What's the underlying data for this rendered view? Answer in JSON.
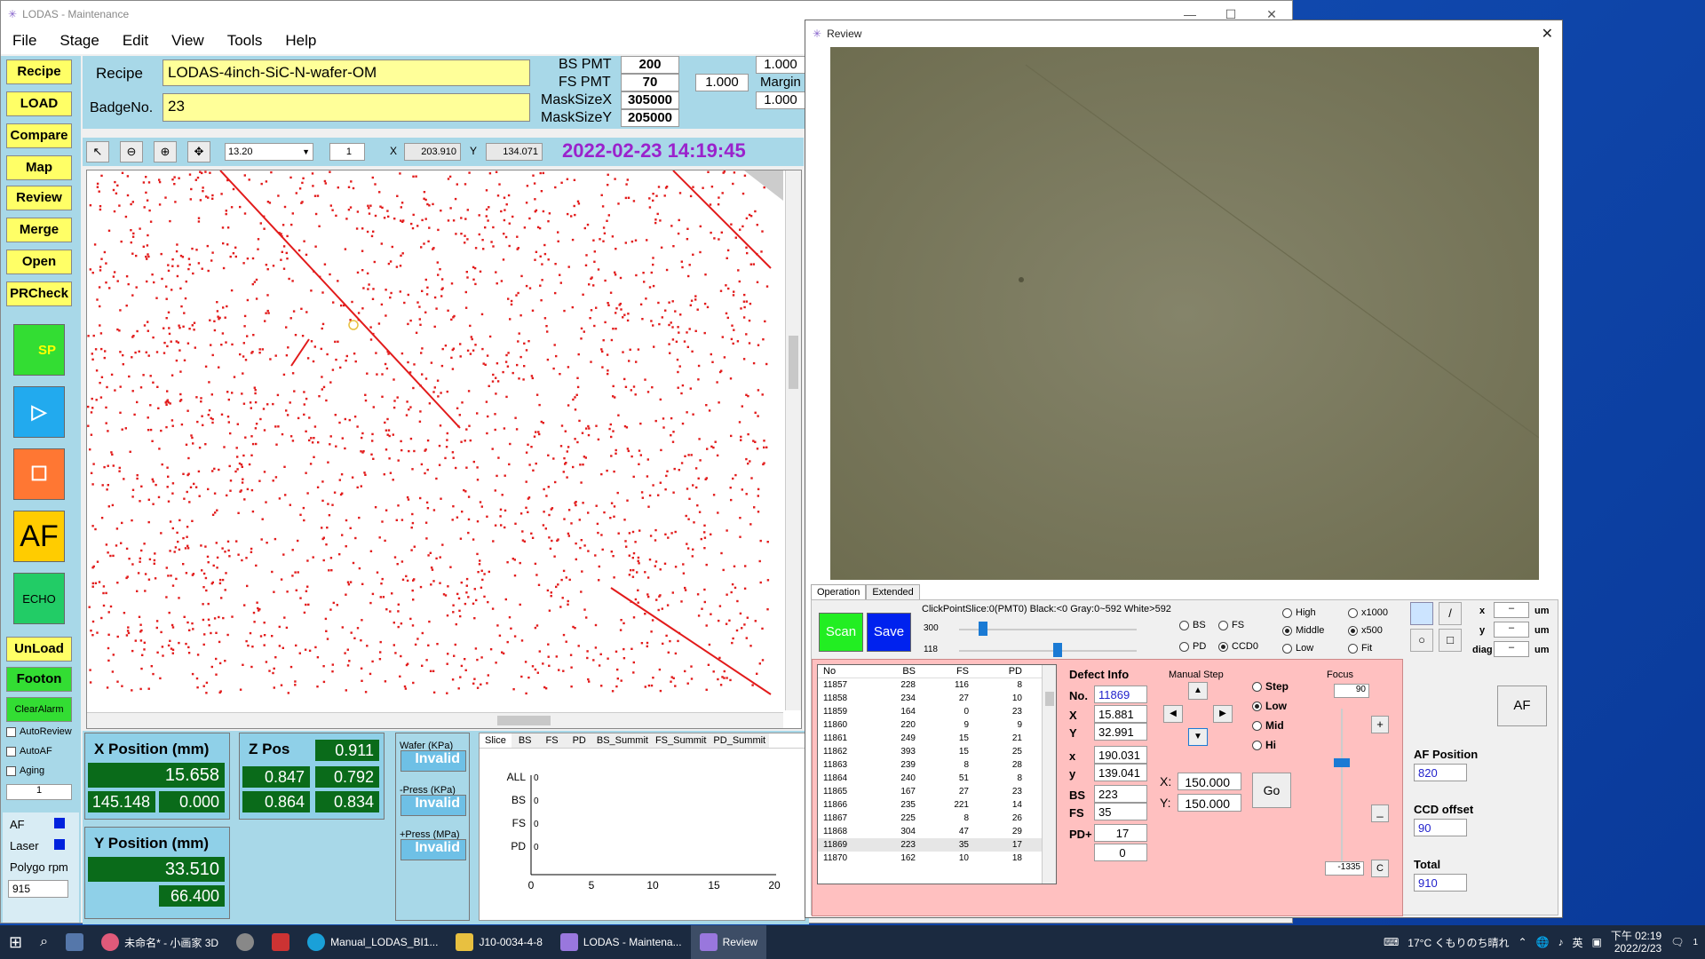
{
  "main": {
    "title": "LODAS - Maintenance",
    "menu": [
      "File",
      "Stage",
      "Edit",
      "View",
      "Tools",
      "Help"
    ],
    "left_buttons": [
      "Recipe",
      "LOAD",
      "Compare",
      "Map",
      "Review",
      "Merge",
      "Open",
      "PRCheck"
    ],
    "sp_label": "SP",
    "af_label": "AF",
    "echo_label": "ECHO",
    "unload_label": "UnLoad",
    "footon_label": "Footon",
    "clearalarm_label": "ClearAlarm",
    "checks": [
      "AutoReview",
      "AutoAF",
      "Aging"
    ],
    "spinner_value": "1",
    "af_status_label": "AF",
    "laser_label": "Laser",
    "polygo_label": "Polygo rpm",
    "polygo_value": "915",
    "recipe_label": "Recipe",
    "recipe_value": "LODAS-4inch-SiC-N-wafer-OM",
    "badge_label": "BadgeNo.",
    "badge_value": "23",
    "bs_pmt_label": "BS PMT",
    "bs_pmt_value": "200",
    "fs_pmt_label": "FS PMT",
    "fs_pmt_value": "70",
    "masksizex_label": "MaskSizeX",
    "masksizex_value": "305000",
    "masksizey_label": "MaskSizeY",
    "masksizey_value": "205000",
    "v1": "1.000",
    "v2": "1.000",
    "margin_label": "Margin",
    "v3": "1.000",
    "zoom_value": "13.20",
    "page_value": "1",
    "x_label": "X",
    "x_value": "203.910",
    "y_label": "Y",
    "y_value": "134.071",
    "datetime": "2022-02-23 14:19:45",
    "xpos_title": "X Position (mm)",
    "xpos_value": "15.658",
    "xpos_sub1": "145.148",
    "xpos_sub2": "0.000",
    "ypos_title": "Y Position (mm)",
    "ypos_value": "33.510",
    "ypos_sub": "66.400",
    "zpos_title": "Z Pos",
    "zpos_value": "0.911",
    "z1": "0.847",
    "z2": "0.792",
    "z3": "0.864",
    "z4": "0.834",
    "wafer_label": "Wafer (KPa)",
    "wafer_value": "Invalid",
    "mpress_label": "-Press (KPa)",
    "mpress_value": "Invalid",
    "ppress_label": "+Press (MPa)",
    "ppress_value": "Invalid",
    "slice_tabs": [
      "Slice",
      "BS",
      "FS",
      "PD",
      "BS_Summit",
      "FS_Summit",
      "PD_Summit"
    ],
    "slice_rows": [
      "ALL",
      "BS",
      "FS",
      "PD"
    ],
    "slice_axis": [
      "0",
      "5",
      "10",
      "15",
      "20"
    ]
  },
  "review": {
    "title": "Review",
    "tabs": [
      "Operation",
      "Extended"
    ],
    "scan_label": "Scan",
    "save_label": "Save",
    "click_info": "ClickPointSlice:0(PMT0) Black:<0 Gray:0~592 White>592",
    "slider1_value": "300",
    "slider2_value": "118",
    "radios_src": [
      "BS",
      "FS",
      "PD",
      "CCD0"
    ],
    "radios_light": [
      "High",
      "Middle",
      "Low"
    ],
    "radios_mag": [
      "x1000",
      "x500",
      "Fit"
    ],
    "meas_labels": [
      "x",
      "y",
      "diag"
    ],
    "meas_value": "–",
    "meas_unit": "um",
    "table_headers": [
      "No",
      "BS",
      "FS",
      "PD"
    ],
    "table_rows": [
      [
        "11857",
        "228",
        "116",
        "8"
      ],
      [
        "11858",
        "234",
        "27",
        "10"
      ],
      [
        "11859",
        "164",
        "0",
        "23"
      ],
      [
        "11860",
        "220",
        "9",
        "9"
      ],
      [
        "11861",
        "249",
        "15",
        "21"
      ],
      [
        "11862",
        "393",
        "15",
        "25"
      ],
      [
        "11863",
        "239",
        "8",
        "28"
      ],
      [
        "11864",
        "240",
        "51",
        "8"
      ],
      [
        "11865",
        "167",
        "27",
        "23"
      ],
      [
        "11866",
        "235",
        "221",
        "14"
      ],
      [
        "11867",
        "225",
        "8",
        "26"
      ],
      [
        "11868",
        "304",
        "47",
        "29"
      ],
      [
        "11869",
        "223",
        "35",
        "17"
      ],
      [
        "11870",
        "162",
        "10",
        "18"
      ]
    ],
    "defect_title": "Defect Info",
    "no_label": "No.",
    "no_value": "11869",
    "dX_label": "X",
    "dX_value": "15.881",
    "dY_label": "Y",
    "dY_value": "32.991",
    "dx_label": "x",
    "dx_value": "190.031",
    "dy_label": "y",
    "dy_value": "139.041",
    "dbs_label": "BS",
    "dbs_value": "223",
    "dfs_label": "FS",
    "dfs_value": "35",
    "dpd_label": "PD+",
    "dpd_value": "17",
    "dpd2_value": "0",
    "manual_step_label": "Manual Step",
    "step_options": [
      "Step",
      "Low",
      "Mid",
      "Hi"
    ],
    "goto_x_label": "X:",
    "goto_x_value": "150.000",
    "goto_y_label": "Y:",
    "goto_y_value": "150.000",
    "go_label": "Go",
    "focus_label": "Focus",
    "focus_value": "90",
    "focus_bottom": "-1335",
    "plus_label": "+",
    "minus_label": "_",
    "c_label": "C",
    "af_btn": "AF",
    "af_pos_label": "AF Position",
    "af_pos_value": "820",
    "ccd_label": "CCD offset",
    "ccd_value": "90",
    "total_label": "Total",
    "total_value": "910"
  },
  "taskbar": {
    "items": [
      "未命名* - 小画家 3D",
      "Manual_LODAS_BI1...",
      "J10-0034-4-8",
      "LODAS - Maintena...",
      "Review"
    ],
    "weather": "17°C くもりのち晴れ",
    "ime": "英",
    "time": "下午 02:19",
    "date": "2022/2/23",
    "notif": "1"
  }
}
